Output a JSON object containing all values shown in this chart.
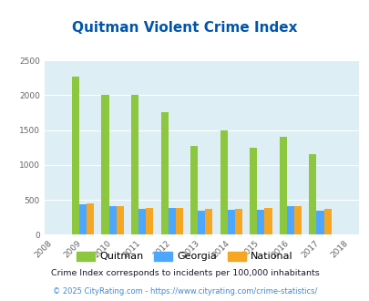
{
  "title": "Quitman Violent Crime Index",
  "years": [
    2008,
    2009,
    2010,
    2011,
    2012,
    2013,
    2014,
    2015,
    2016,
    2017,
    2018
  ],
  "bar_years": [
    2009,
    2010,
    2011,
    2012,
    2013,
    2014,
    2015,
    2016,
    2017
  ],
  "quitman": [
    2260,
    2000,
    2000,
    1750,
    1270,
    1500,
    1250,
    1400,
    1160
  ],
  "georgia": [
    430,
    410,
    365,
    385,
    345,
    360,
    360,
    410,
    345
  ],
  "national": [
    445,
    415,
    390,
    390,
    370,
    370,
    380,
    415,
    375
  ],
  "quitman_color": "#8dc63f",
  "georgia_color": "#4da6ff",
  "national_color": "#f5a623",
  "bg_color": "#ddeef4",
  "title_color": "#0055aa",
  "ylim": [
    0,
    2500
  ],
  "yticks": [
    0,
    500,
    1000,
    1500,
    2000,
    2500
  ],
  "bar_width": 0.25,
  "footnote1": "Crime Index corresponds to incidents per 100,000 inhabitants",
  "footnote2": "© 2025 CityRating.com - https://www.cityrating.com/crime-statistics/",
  "legend_labels": [
    "Quitman",
    "Georgia",
    "National"
  ],
  "footnote1_color": "#1a1a2e",
  "footnote2_color": "#4488cc"
}
